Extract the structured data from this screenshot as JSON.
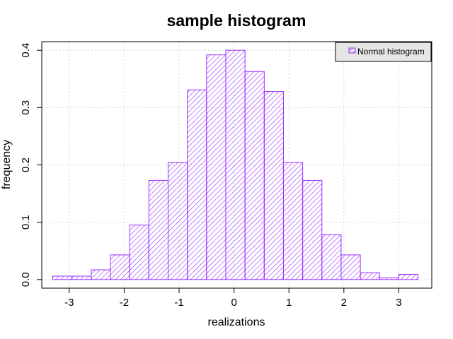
{
  "chart_data": {
    "type": "bar",
    "title": "sample histogram",
    "xlabel": "realizations",
    "ylabel": "frequency",
    "bin_width": 0.35,
    "bins": [
      {
        "x0": -3.3,
        "x1": -2.95,
        "value": 0.006
      },
      {
        "x0": -2.95,
        "x1": -2.6,
        "value": 0.006
      },
      {
        "x0": -2.6,
        "x1": -2.25,
        "value": 0.017
      },
      {
        "x0": -2.25,
        "x1": -1.9,
        "value": 0.043
      },
      {
        "x0": -1.9,
        "x1": -1.55,
        "value": 0.095
      },
      {
        "x0": -1.55,
        "x1": -1.2,
        "value": 0.173
      },
      {
        "x0": -1.2,
        "x1": -0.85,
        "value": 0.204
      },
      {
        "x0": -0.85,
        "x1": -0.5,
        "value": 0.331
      },
      {
        "x0": -0.5,
        "x1": -0.15,
        "value": 0.392
      },
      {
        "x0": -0.15,
        "x1": 0.2,
        "value": 0.4
      },
      {
        "x0": 0.2,
        "x1": 0.55,
        "value": 0.363
      },
      {
        "x0": 0.55,
        "x1": 0.9,
        "value": 0.328
      },
      {
        "x0": 0.9,
        "x1": 1.25,
        "value": 0.204
      },
      {
        "x0": 1.25,
        "x1": 1.6,
        "value": 0.173
      },
      {
        "x0": 1.6,
        "x1": 1.95,
        "value": 0.078
      },
      {
        "x0": 1.95,
        "x1": 2.3,
        "value": 0.043
      },
      {
        "x0": 2.3,
        "x1": 2.65,
        "value": 0.012
      },
      {
        "x0": 2.65,
        "x1": 3.0,
        "value": 0.003
      },
      {
        "x0": 3.0,
        "x1": 3.35,
        "value": 0.009
      }
    ],
    "xlim": [
      -3.5,
      3.6
    ],
    "ylim": [
      -0.015,
      0.415
    ],
    "x_ticks": [
      -3,
      -2,
      -1,
      0,
      1,
      2,
      3
    ],
    "x_tick_labels": [
      "-3",
      "-2",
      "-1",
      "0",
      "1",
      "2",
      "3"
    ],
    "y_ticks": [
      0.0,
      0.1,
      0.2,
      0.3,
      0.4
    ],
    "y_tick_labels": [
      "0.0",
      "0.1",
      "0.2",
      "0.3",
      "0.4"
    ],
    "grid": true,
    "legend": {
      "position": "top-right",
      "entries": [
        "Normal histogram"
      ]
    },
    "colors": {
      "bar": "#9b30ff",
      "grid": "#d3d3d3",
      "legend_bg": "#e6e6e6"
    }
  }
}
